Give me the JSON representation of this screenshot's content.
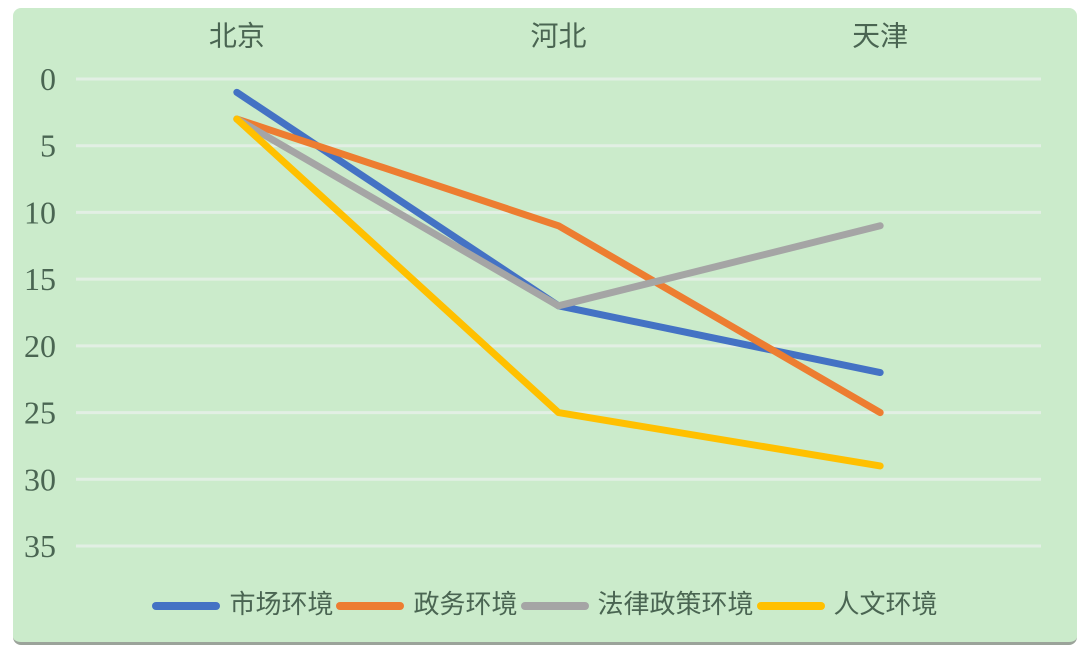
{
  "card": {
    "background": "#cbebcb",
    "bottom_border_color": "#9ba39a"
  },
  "style": {
    "text_color": "#4a6552",
    "gridline_color": "#e2efe4",
    "line_width": 7
  },
  "chart_data": {
    "type": "line",
    "title": "",
    "xlabel": "",
    "ylabel": "",
    "x_axis_position": "top",
    "legend_position": "bottom",
    "grid": true,
    "categories": [
      "北京",
      "河北",
      "天津"
    ],
    "y_axis": {
      "min": 0,
      "max": 35,
      "inverted": true,
      "ticks": [
        0,
        5,
        10,
        15,
        20,
        25,
        30,
        35
      ]
    },
    "series": [
      {
        "name": "市场环境",
        "slug": "market-environment",
        "color": "#4472c4",
        "values": [
          1,
          17,
          22
        ]
      },
      {
        "name": "政务环境",
        "slug": "government-affairs-environment",
        "color": "#ed7d31",
        "values": [
          3,
          11,
          25
        ]
      },
      {
        "name": "法律政策环境",
        "slug": "legal-policy-environment",
        "color": "#a5a5a5",
        "values": [
          3,
          17,
          11
        ]
      },
      {
        "name": "人文环境",
        "slug": "humanistic-environment",
        "color": "#ffc000",
        "values": [
          3,
          25,
          29
        ]
      }
    ]
  }
}
